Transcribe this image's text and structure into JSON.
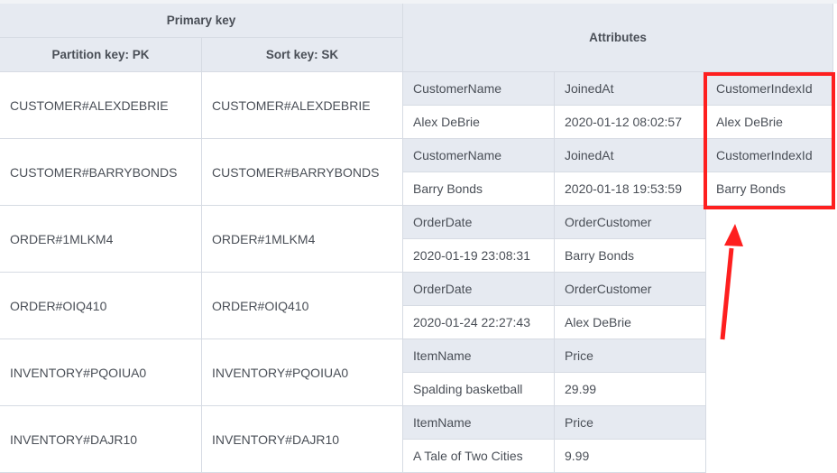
{
  "header": {
    "primary_key": "Primary key",
    "partition_key": "Partition key: PK",
    "sort_key": "Sort key: SK",
    "attributes": "Attributes"
  },
  "rows": [
    {
      "pk": "CUSTOMER#ALEXDEBRIE",
      "sk": "CUSTOMER#ALEXDEBRIE",
      "attrs": [
        [
          "CustomerName",
          "Alex DeBrie"
        ],
        [
          "JoinedAt",
          "2020-01-12 08:02:57"
        ],
        [
          "CustomerIndexId",
          "Alex DeBrie"
        ]
      ]
    },
    {
      "pk": "CUSTOMER#BARRYBONDS",
      "sk": "CUSTOMER#BARRYBONDS",
      "attrs": [
        [
          "CustomerName",
          "Barry Bonds"
        ],
        [
          "JoinedAt",
          "2020-01-18 19:53:59"
        ],
        [
          "CustomerIndexId",
          "Barry Bonds"
        ]
      ]
    },
    {
      "pk": "ORDER#1MLKM4",
      "sk": "ORDER#1MLKM4",
      "attrs": [
        [
          "OrderDate",
          "2020-01-19 23:08:31"
        ],
        [
          "OrderCustomer",
          "Barry Bonds"
        ]
      ]
    },
    {
      "pk": "ORDER#OIQ410",
      "sk": "ORDER#OIQ410",
      "attrs": [
        [
          "OrderDate",
          "2020-01-24 22:27:43"
        ],
        [
          "OrderCustomer",
          "Alex DeBrie"
        ]
      ]
    },
    {
      "pk": "INVENTORY#PQOIUA0",
      "sk": "INVENTORY#PQOIUA0",
      "attrs": [
        [
          "ItemName",
          "Spalding basketball"
        ],
        [
          "Price",
          "29.99"
        ]
      ]
    },
    {
      "pk": "INVENTORY#DAJR10",
      "sk": "INVENTORY#DAJR10",
      "attrs": [
        [
          "ItemName",
          "A Tale of Two Cities"
        ],
        [
          "Price",
          "9.99"
        ]
      ]
    }
  ],
  "annotation": {
    "highlight_color": "#fe1f1f",
    "highlighted_attribute": "CustomerIndexId"
  }
}
